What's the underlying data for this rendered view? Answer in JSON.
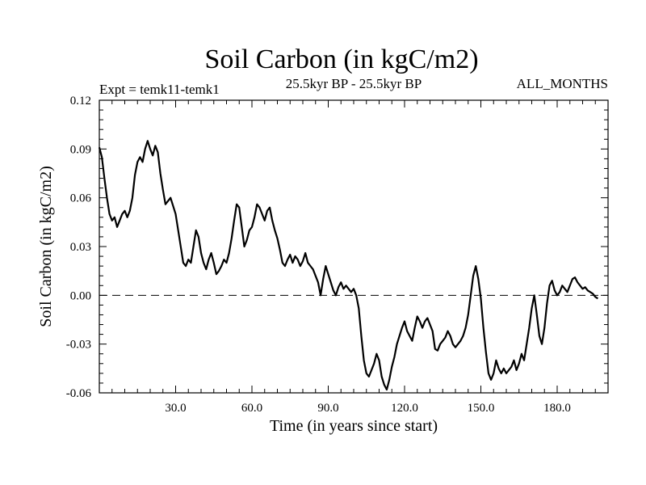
{
  "chart_data": {
    "type": "line",
    "title": "Soil Carbon (in kgC/m2)",
    "subtitle_left": "Expt = temk11-temk1",
    "subtitle_center": "25.5kyr BP - 25.5kyr BP",
    "subtitle_right": "ALL_MONTHS",
    "xlabel": "Time (in years since start)",
    "ylabel": "Soil Carbon (in kgC/m2)",
    "xlim": [
      0,
      200
    ],
    "ylim": [
      -0.06,
      0.12
    ],
    "xticks": [
      {
        "value": 30,
        "label": "30.0"
      },
      {
        "value": 60,
        "label": "60.0"
      },
      {
        "value": 90,
        "label": "90.0"
      },
      {
        "value": 120,
        "label": "120.0"
      },
      {
        "value": 150,
        "label": "150.0"
      },
      {
        "value": 180,
        "label": "180.0"
      }
    ],
    "yticks": [
      {
        "value": 0.12,
        "label": "0.12"
      },
      {
        "value": 0.09,
        "label": "0.09"
      },
      {
        "value": 0.06,
        "label": "0.06"
      },
      {
        "value": 0.03,
        "label": "0.03"
      },
      {
        "value": 0.0,
        "label": "0.00"
      },
      {
        "value": -0.03,
        "label": "-0.03"
      },
      {
        "value": -0.06,
        "label": "-0.06"
      }
    ],
    "reference_line": 0.0,
    "series": [
      {
        "name": "temk11-temk1",
        "points": [
          [
            0,
            0.091
          ],
          [
            1,
            0.085
          ],
          [
            2,
            0.072
          ],
          [
            3,
            0.06
          ],
          [
            4,
            0.05
          ],
          [
            5,
            0.046
          ],
          [
            6,
            0.048
          ],
          [
            7,
            0.042
          ],
          [
            8,
            0.046
          ],
          [
            9,
            0.05
          ],
          [
            10,
            0.052
          ],
          [
            11,
            0.048
          ],
          [
            12,
            0.052
          ],
          [
            13,
            0.06
          ],
          [
            14,
            0.074
          ],
          [
            15,
            0.082
          ],
          [
            16,
            0.085
          ],
          [
            17,
            0.082
          ],
          [
            18,
            0.09
          ],
          [
            19,
            0.095
          ],
          [
            20,
            0.09
          ],
          [
            21,
            0.086
          ],
          [
            22,
            0.092
          ],
          [
            23,
            0.088
          ],
          [
            24,
            0.075
          ],
          [
            25,
            0.065
          ],
          [
            26,
            0.056
          ],
          [
            27,
            0.058
          ],
          [
            28,
            0.06
          ],
          [
            29,
            0.055
          ],
          [
            30,
            0.05
          ],
          [
            31,
            0.04
          ],
          [
            32,
            0.03
          ],
          [
            33,
            0.02
          ],
          [
            34,
            0.018
          ],
          [
            35,
            0.022
          ],
          [
            36,
            0.02
          ],
          [
            37,
            0.03
          ],
          [
            38,
            0.04
          ],
          [
            39,
            0.036
          ],
          [
            40,
            0.026
          ],
          [
            41,
            0.02
          ],
          [
            42,
            0.016
          ],
          [
            43,
            0.022
          ],
          [
            44,
            0.026
          ],
          [
            45,
            0.02
          ],
          [
            46,
            0.013
          ],
          [
            47,
            0.015
          ],
          [
            48,
            0.018
          ],
          [
            49,
            0.022
          ],
          [
            50,
            0.02
          ],
          [
            51,
            0.026
          ],
          [
            52,
            0.035
          ],
          [
            53,
            0.046
          ],
          [
            54,
            0.056
          ],
          [
            55,
            0.054
          ],
          [
            56,
            0.042
          ],
          [
            57,
            0.03
          ],
          [
            58,
            0.034
          ],
          [
            59,
            0.04
          ],
          [
            60,
            0.042
          ],
          [
            61,
            0.048
          ],
          [
            62,
            0.056
          ],
          [
            63,
            0.054
          ],
          [
            64,
            0.05
          ],
          [
            65,
            0.046
          ],
          [
            66,
            0.052
          ],
          [
            67,
            0.054
          ],
          [
            68,
            0.046
          ],
          [
            69,
            0.04
          ],
          [
            70,
            0.035
          ],
          [
            71,
            0.028
          ],
          [
            72,
            0.02
          ],
          [
            73,
            0.018
          ],
          [
            74,
            0.022
          ],
          [
            75,
            0.025
          ],
          [
            76,
            0.02
          ],
          [
            77,
            0.024
          ],
          [
            78,
            0.022
          ],
          [
            79,
            0.018
          ],
          [
            80,
            0.021
          ],
          [
            81,
            0.026
          ],
          [
            82,
            0.02
          ],
          [
            83,
            0.018
          ],
          [
            84,
            0.016
          ],
          [
            85,
            0.012
          ],
          [
            86,
            0.008
          ],
          [
            87,
            0.0
          ],
          [
            88,
            0.01
          ],
          [
            89,
            0.018
          ],
          [
            90,
            0.013
          ],
          [
            91,
            0.008
          ],
          [
            92,
            0.003
          ],
          [
            93,
            0.0
          ],
          [
            94,
            0.005
          ],
          [
            95,
            0.008
          ],
          [
            96,
            0.004
          ],
          [
            97,
            0.006
          ],
          [
            98,
            0.004
          ],
          [
            99,
            0.002
          ],
          [
            100,
            0.004
          ],
          [
            101,
            0.0
          ],
          [
            102,
            -0.008
          ],
          [
            103,
            -0.025
          ],
          [
            104,
            -0.04
          ],
          [
            105,
            -0.048
          ],
          [
            106,
            -0.05
          ],
          [
            107,
            -0.046
          ],
          [
            108,
            -0.042
          ],
          [
            109,
            -0.036
          ],
          [
            110,
            -0.04
          ],
          [
            111,
            -0.05
          ],
          [
            112,
            -0.055
          ],
          [
            113,
            -0.058
          ],
          [
            114,
            -0.052
          ],
          [
            115,
            -0.044
          ],
          [
            116,
            -0.038
          ],
          [
            117,
            -0.03
          ],
          [
            118,
            -0.025
          ],
          [
            119,
            -0.02
          ],
          [
            120,
            -0.016
          ],
          [
            121,
            -0.022
          ],
          [
            122,
            -0.025
          ],
          [
            123,
            -0.028
          ],
          [
            124,
            -0.02
          ],
          [
            125,
            -0.013
          ],
          [
            126,
            -0.016
          ],
          [
            127,
            -0.02
          ],
          [
            128,
            -0.016
          ],
          [
            129,
            -0.014
          ],
          [
            130,
            -0.018
          ],
          [
            131,
            -0.022
          ],
          [
            132,
            -0.033
          ],
          [
            133,
            -0.034
          ],
          [
            134,
            -0.03
          ],
          [
            135,
            -0.028
          ],
          [
            136,
            -0.026
          ],
          [
            137,
            -0.022
          ],
          [
            138,
            -0.025
          ],
          [
            139,
            -0.03
          ],
          [
            140,
            -0.032
          ],
          [
            141,
            -0.03
          ],
          [
            142,
            -0.028
          ],
          [
            143,
            -0.025
          ],
          [
            144,
            -0.02
          ],
          [
            145,
            -0.012
          ],
          [
            146,
            0.0
          ],
          [
            147,
            0.012
          ],
          [
            148,
            0.018
          ],
          [
            149,
            0.01
          ],
          [
            150,
            -0.002
          ],
          [
            151,
            -0.02
          ],
          [
            152,
            -0.035
          ],
          [
            153,
            -0.048
          ],
          [
            154,
            -0.052
          ],
          [
            155,
            -0.048
          ],
          [
            156,
            -0.04
          ],
          [
            157,
            -0.045
          ],
          [
            158,
            -0.048
          ],
          [
            159,
            -0.045
          ],
          [
            160,
            -0.048
          ],
          [
            161,
            -0.046
          ],
          [
            162,
            -0.044
          ],
          [
            163,
            -0.04
          ],
          [
            164,
            -0.046
          ],
          [
            165,
            -0.042
          ],
          [
            166,
            -0.036
          ],
          [
            167,
            -0.04
          ],
          [
            168,
            -0.03
          ],
          [
            169,
            -0.02
          ],
          [
            170,
            -0.008
          ],
          [
            171,
            0.0
          ],
          [
            172,
            -0.012
          ],
          [
            173,
            -0.025
          ],
          [
            174,
            -0.03
          ],
          [
            175,
            -0.02
          ],
          [
            176,
            -0.005
          ],
          [
            177,
            0.006
          ],
          [
            178,
            0.009
          ],
          [
            179,
            0.003
          ],
          [
            180,
            0.0
          ],
          [
            181,
            0.002
          ],
          [
            182,
            0.006
          ],
          [
            183,
            0.004
          ],
          [
            184,
            0.002
          ],
          [
            185,
            0.006
          ],
          [
            186,
            0.01
          ],
          [
            187,
            0.011
          ],
          [
            188,
            0.008
          ],
          [
            189,
            0.006
          ],
          [
            190,
            0.004
          ],
          [
            191,
            0.005
          ],
          [
            192,
            0.003
          ],
          [
            193,
            0.002
          ],
          [
            194,
            0.001
          ],
          [
            195,
            -0.001
          ],
          [
            196,
            -0.002
          ]
        ]
      }
    ]
  }
}
